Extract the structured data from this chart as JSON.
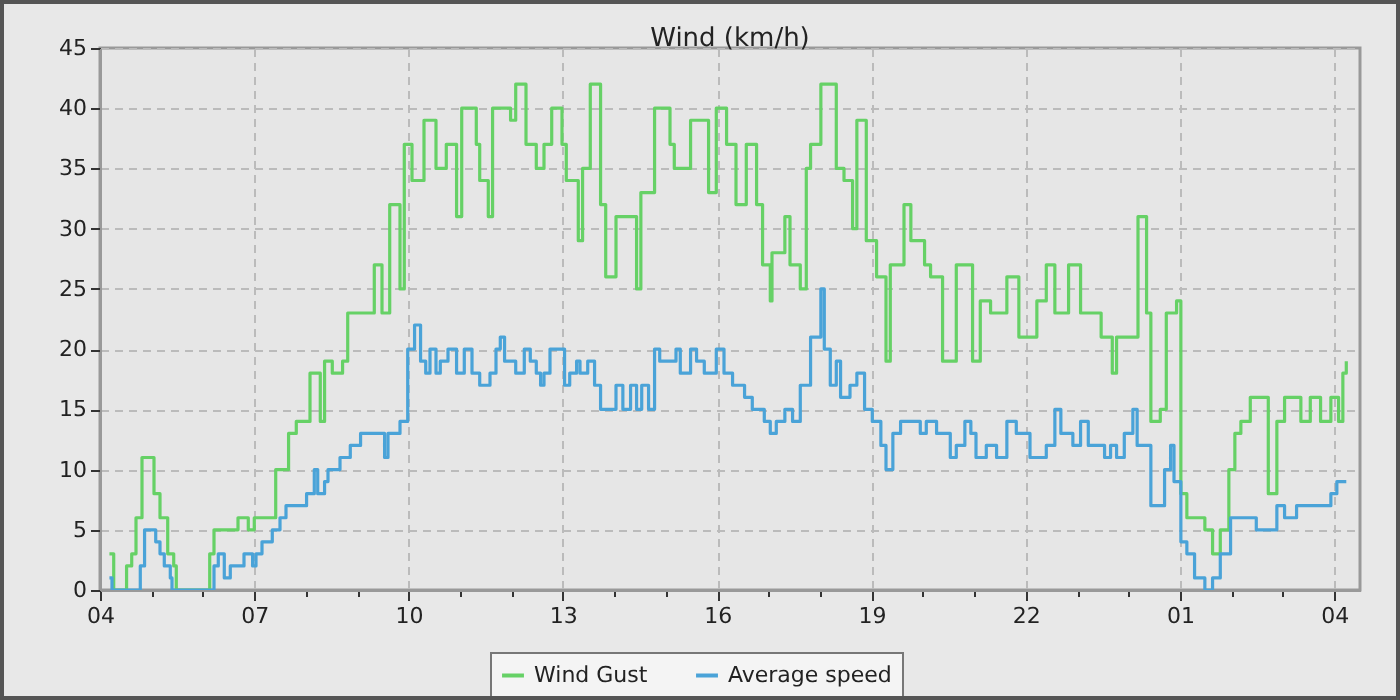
{
  "chart_data": {
    "type": "step",
    "title": "Wind (km/h)",
    "legend": "bottom",
    "grid": true,
    "line_style": "solid",
    "xlim": [
      "--01-01T04:00",
      "--01-02T04:30"
    ],
    "ylim": [
      0,
      45
    ],
    "xticks": [
      {
        "value": "--01-01T04:00",
        "label": "04"
      },
      {
        "value": "--01-01T05:00",
        "label": null
      },
      {
        "value": "--01-01T06:00",
        "label": null
      },
      {
        "value": "--01-01T07:00",
        "label": "07"
      },
      {
        "value": "--01-01T08:00",
        "label": null
      },
      {
        "value": "--01-01T09:00",
        "label": null
      },
      {
        "value": "--01-01T10:00",
        "label": "10"
      },
      {
        "value": "--01-01T11:00",
        "label": null
      },
      {
        "value": "--01-01T12:00",
        "label": null
      },
      {
        "value": "--01-01T13:00",
        "label": "13"
      },
      {
        "value": "--01-01T14:00",
        "label": null
      },
      {
        "value": "--01-01T15:00",
        "label": null
      },
      {
        "value": "--01-01T16:00",
        "label": "16"
      },
      {
        "value": "--01-01T17:00",
        "label": null
      },
      {
        "value": "--01-01T18:00",
        "label": null
      },
      {
        "value": "--01-01T19:00",
        "label": "19"
      },
      {
        "value": "--01-01T20:00",
        "label": null
      },
      {
        "value": "--01-01T21:00",
        "label": null
      },
      {
        "value": "--01-01T22:00",
        "label": "22"
      },
      {
        "value": "--01-01T23:00",
        "label": null
      },
      {
        "value": "--01-02T00:00",
        "label": null
      },
      {
        "value": "--01-02T01:00",
        "label": "01"
      },
      {
        "value": "--01-02T02:00",
        "label": null
      },
      {
        "value": "--01-02T03:00",
        "label": null
      },
      {
        "value": "--01-02T04:00",
        "label": "04"
      }
    ],
    "yticks": [
      0,
      5,
      10,
      15,
      20,
      25,
      30,
      35,
      40,
      45
    ],
    "series": [
      {
        "name": "Wind Gust",
        "color": "#66d166",
        "x": [
          "--01-01T04:11",
          "--01-01T04:16",
          "--01-01T04:31",
          "--01-01T04:37",
          "--01-01T04:42",
          "--01-01T04:49",
          "--01-01T05:03",
          "--01-01T05:10",
          "--01-01T05:19",
          "--01-01T05:26",
          "--01-01T05:29",
          "--01-01T06:08",
          "--01-01T06:13",
          "--01-01T06:37",
          "--01-01T06:41",
          "--01-01T06:53",
          "--01-01T07:00",
          "--01-01T07:21",
          "--01-01T07:25",
          "--01-01T07:40",
          "--01-01T07:49",
          "--01-01T08:05",
          "--01-01T08:17",
          "--01-01T08:22",
          "--01-01T08:31",
          "--01-01T08:43",
          "--01-01T08:49",
          "--01-01T09:20",
          "--01-01T09:29",
          "--01-01T09:38",
          "--01-01T09:50",
          "--01-01T09:55",
          "--01-01T10:04",
          "--01-01T10:18",
          "--01-01T10:32",
          "--01-01T10:44",
          "--01-01T10:56",
          "--01-01T11:02",
          "--01-01T11:19",
          "--01-01T11:23",
          "--01-01T11:33",
          "--01-01T11:38",
          "--01-01T11:59",
          "--01-01T12:05",
          "--01-01T12:17",
          "--01-01T12:29",
          "--01-01T12:38",
          "--01-01T12:47",
          "--01-01T12:59",
          "--01-01T13:04",
          "--01-01T13:18",
          "--01-01T13:23",
          "--01-01T13:32",
          "--01-01T13:44",
          "--01-01T13:50",
          "--01-01T14:02",
          "--01-01T14:21",
          "--01-01T14:26",
          "--01-01T14:31",
          "--01-01T14:47",
          "--01-01T15:05",
          "--01-01T15:10",
          "--01-01T15:29",
          "--01-01T15:43",
          "--01-01T15:50",
          "--01-01T15:59",
          "--01-01T16:11",
          "--01-01T16:22",
          "--01-01T16:34",
          "--01-01T16:46",
          "--01-01T16:53",
          "--01-01T17:02",
          "--01-01T17:04",
          "--01-01T17:19",
          "--01-01T17:25",
          "--01-01T17:37",
          "--01-01T17:44",
          "--01-01T17:49",
          "--01-01T18:01",
          "--01-01T18:14",
          "--01-01T18:19",
          "--01-01T18:28",
          "--01-01T18:38",
          "--01-01T18:43",
          "--01-01T18:54",
          "--01-01T19:06",
          "--01-01T19:17",
          "--01-01T19:22",
          "--01-01T19:38",
          "--01-01T19:46",
          "--01-01T20:02",
          "--01-01T20:09",
          "--01-01T20:23",
          "--01-01T20:39",
          "--01-01T20:58",
          "--01-01T21:07",
          "--01-01T21:19",
          "--01-01T21:38",
          "--01-01T21:52",
          "--01-01T22:13",
          "--01-01T22:24",
          "--01-01T22:34",
          "--01-01T22:50",
          "--01-01T23:04",
          "--01-01T23:28",
          "--01-01T23:41",
          "--01-01T23:46",
          "--01-02T00:11",
          "--01-02T00:21",
          "--01-02T00:26",
          "--01-02T00:37",
          "--01-02T00:44",
          "--01-02T00:56",
          "--01-02T01:01",
          "--01-02T01:08",
          "--01-02T01:29",
          "--01-02T01:38",
          "--01-02T01:47",
          "--01-02T01:57",
          "--01-02T02:04",
          "--01-02T02:11",
          "--01-02T02:22",
          "--01-02T02:39",
          "--01-02T02:43",
          "--01-02T02:53",
          "--01-02T03:02",
          "--01-02T03:21",
          "--01-02T03:32",
          "--01-02T03:44",
          "--01-02T03:56",
          "--01-02T04:05",
          "--01-02T04:10",
          "--01-02T04:14"
        ],
        "values": [
          3,
          0,
          2,
          3,
          6,
          11,
          8,
          6,
          3,
          2,
          0,
          3,
          5,
          5,
          6,
          5,
          6,
          6,
          10,
          13,
          14,
          18,
          14,
          19,
          18,
          19,
          23,
          27,
          23,
          32,
          25,
          37,
          34,
          39,
          35,
          37,
          31,
          40,
          37,
          34,
          31,
          40,
          39,
          42,
          37,
          35,
          37,
          40,
          37,
          34,
          29,
          35,
          42,
          32,
          26,
          31,
          31,
          25,
          33,
          40,
          37,
          35,
          39,
          39,
          33,
          40,
          37,
          32,
          37,
          32,
          27,
          24,
          28,
          31,
          27,
          25,
          35,
          37,
          42,
          42,
          35,
          34,
          30,
          39,
          29,
          26,
          19,
          27,
          32,
          29,
          27,
          26,
          19,
          27,
          19,
          24,
          23,
          26,
          21,
          24,
          27,
          23,
          27,
          23,
          21,
          18,
          21,
          31,
          23,
          14,
          15,
          23,
          24,
          8,
          6,
          5,
          3,
          5,
          10,
          13,
          14,
          16,
          16,
          8,
          14,
          16,
          14,
          16,
          14,
          16,
          14,
          18,
          19
        ]
      },
      {
        "name": "Average speed",
        "color": "#4aa3d8",
        "x": [
          "--01-01T04:11",
          "--01-01T04:14",
          "--01-01T04:47",
          "--01-01T04:52",
          "--01-01T05:05",
          "--01-01T05:10",
          "--01-01T05:15",
          "--01-01T05:22",
          "--01-01T05:24",
          "--01-01T06:13",
          "--01-01T06:18",
          "--01-01T06:25",
          "--01-01T06:32",
          "--01-01T06:48",
          "--01-01T06:58",
          "--01-01T07:02",
          "--01-01T07:09",
          "--01-01T07:21",
          "--01-01T07:30",
          "--01-01T07:37",
          "--01-01T08:01",
          "--01-01T08:10",
          "--01-01T08:14",
          "--01-01T08:22",
          "--01-01T08:26",
          "--01-01T08:40",
          "--01-01T08:52",
          "--01-01T09:04",
          "--01-01T09:32",
          "--01-01T09:36",
          "--01-01T09:50",
          "--01-01T09:59",
          "--01-01T10:07",
          "--01-01T10:14",
          "--01-01T10:20",
          "--01-01T10:25",
          "--01-01T10:32",
          "--01-01T10:37",
          "--01-01T10:46",
          "--01-01T10:56",
          "--01-01T11:05",
          "--01-01T11:14",
          "--01-01T11:23",
          "--01-01T11:35",
          "--01-01T11:42",
          "--01-01T11:47",
          "--01-01T11:52",
          "--01-01T12:05",
          "--01-01T12:15",
          "--01-01T12:22",
          "--01-01T12:29",
          "--01-01T12:34",
          "--01-01T12:38",
          "--01-01T12:45",
          "--01-01T12:57",
          "--01-01T13:02",
          "--01-01T13:08",
          "--01-01T13:16",
          "--01-01T13:20",
          "--01-01T13:29",
          "--01-01T13:37",
          "--01-01T13:44",
          "--01-01T13:55",
          "--01-01T14:02",
          "--01-01T14:10",
          "--01-01T14:19",
          "--01-01T14:26",
          "--01-01T14:32",
          "--01-01T14:40",
          "--01-01T14:47",
          "--01-01T14:53",
          "--01-01T15:12",
          "--01-01T15:17",
          "--01-01T15:29",
          "--01-01T15:36",
          "--01-01T15:45",
          "--01-01T15:59",
          "--01-01T16:08",
          "--01-01T16:18",
          "--01-01T16:32",
          "--01-01T16:41",
          "--01-01T16:55",
          "--01-01T17:02",
          "--01-01T17:09",
          "--01-01T17:19",
          "--01-01T17:28",
          "--01-01T17:37",
          "--01-01T17:49",
          "--01-01T18:01",
          "--01-01T18:05",
          "--01-01T18:12",
          "--01-01T18:19",
          "--01-01T18:24",
          "--01-01T18:35",
          "--01-01T18:43",
          "--01-01T18:52",
          "--01-01T19:01",
          "--01-01T19:11",
          "--01-01T19:17",
          "--01-01T19:25",
          "--01-01T19:34",
          "--01-01T19:46",
          "--01-01T19:57",
          "--01-01T20:04",
          "--01-01T20:16",
          "--01-01T20:32",
          "--01-01T20:39",
          "--01-01T20:49",
          "--01-01T20:56",
          "--01-01T21:02",
          "--01-01T21:14",
          "--01-01T21:26",
          "--01-01T21:38",
          "--01-01T21:49",
          "--01-01T22:05",
          "--01-01T22:24",
          "--01-01T22:34",
          "--01-01T22:41",
          "--01-01T22:55",
          "--01-01T23:04",
          "--01-01T23:13",
          "--01-01T23:32",
          "--01-01T23:39",
          "--01-01T23:46",
          "--01-01T23:55",
          "--01-02T00:05",
          "--01-02T00:10",
          "--01-02T00:26",
          "--01-02T00:42",
          "--01-02T00:49",
          "--01-02T00:53",
          "--01-02T01:01",
          "--01-02T01:08",
          "--01-02T01:17",
          "--01-02T01:29",
          "--01-02T01:38",
          "--01-02T01:47",
          "--01-02T01:59",
          "--01-02T02:29",
          "--01-02T02:53",
          "--01-02T03:02",
          "--01-02T03:16",
          "--01-02T03:56",
          "--01-02T04:03",
          "--01-02T04:14"
        ],
        "values": [
          1,
          0,
          2,
          5,
          4,
          3,
          2,
          1,
          0,
          2,
          3,
          1,
          2,
          3,
          2,
          3,
          4,
          5,
          6,
          7,
          8,
          10,
          8,
          9,
          10,
          11,
          12,
          13,
          11,
          13,
          14,
          20,
          22,
          19,
          18,
          20,
          18,
          19,
          20,
          18,
          20,
          18,
          17,
          18,
          20,
          21,
          19,
          18,
          20,
          19,
          18,
          17,
          18,
          20,
          20,
          17,
          18,
          19,
          18,
          19,
          17,
          15,
          15,
          17,
          15,
          17,
          15,
          17,
          15,
          20,
          19,
          20,
          18,
          20,
          19,
          18,
          20,
          18,
          17,
          16,
          15,
          14,
          13,
          14,
          15,
          14,
          17,
          21,
          25,
          20,
          17,
          19,
          16,
          17,
          18,
          15,
          14,
          12,
          10,
          13,
          14,
          14,
          13,
          14,
          13,
          11,
          12,
          14,
          13,
          11,
          12,
          11,
          14,
          13,
          11,
          12,
          15,
          13,
          12,
          14,
          12,
          11,
          12,
          11,
          13,
          15,
          12,
          7,
          10,
          12,
          9,
          4,
          3,
          1,
          0,
          1,
          3,
          6,
          5,
          7,
          6,
          7,
          8,
          9,
          9
        ]
      }
    ]
  }
}
